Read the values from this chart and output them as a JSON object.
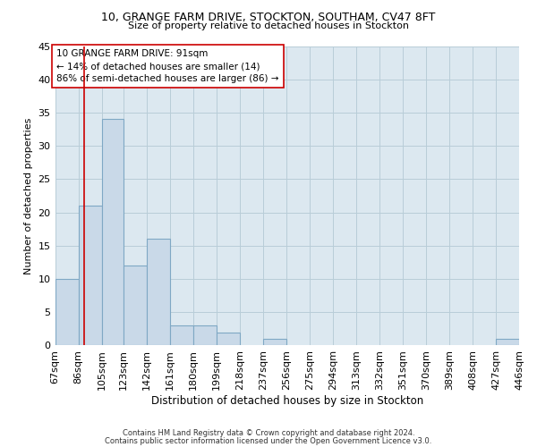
{
  "title1": "10, GRANGE FARM DRIVE, STOCKTON, SOUTHAM, CV47 8FT",
  "title2": "Size of property relative to detached houses in Stockton",
  "xlabel": "Distribution of detached houses by size in Stockton",
  "ylabel": "Number of detached properties",
  "footnote1": "Contains HM Land Registry data © Crown copyright and database right 2024.",
  "footnote2": "Contains public sector information licensed under the Open Government Licence v3.0.",
  "annotation_line1": "10 GRANGE FARM DRIVE: 91sqm",
  "annotation_line2": "← 14% of detached houses are smaller (14)",
  "annotation_line3": "86% of semi-detached houses are larger (86) →",
  "property_size": 91,
  "bar_left_edges": [
    67,
    86,
    105,
    123,
    142,
    161,
    180,
    199,
    218,
    237,
    256,
    275,
    294,
    313,
    332,
    351,
    370,
    389,
    408,
    427
  ],
  "bar_widths": [
    19,
    19,
    18,
    19,
    19,
    19,
    19,
    19,
    19,
    19,
    19,
    19,
    19,
    19,
    19,
    19,
    19,
    19,
    19,
    19
  ],
  "bar_heights": [
    10,
    21,
    34,
    12,
    16,
    3,
    3,
    2,
    0,
    1,
    0,
    0,
    0,
    0,
    0,
    0,
    0,
    0,
    0,
    1
  ],
  "tick_labels": [
    "67sqm",
    "86sqm",
    "105sqm",
    "123sqm",
    "142sqm",
    "161sqm",
    "180sqm",
    "199sqm",
    "218sqm",
    "237sqm",
    "256sqm",
    "275sqm",
    "294sqm",
    "313sqm",
    "332sqm",
    "351sqm",
    "370sqm",
    "389sqm",
    "408sqm",
    "427sqm",
    "446sqm"
  ],
  "tick_positions": [
    67,
    86,
    105,
    123,
    142,
    161,
    180,
    199,
    218,
    237,
    256,
    275,
    294,
    313,
    332,
    351,
    370,
    389,
    408,
    427,
    446
  ],
  "bar_fill_color": "#c9d9e8",
  "bar_edge_color": "#7fa8c4",
  "vline_color": "#cc0000",
  "vline_x": 91,
  "ylim": [
    0,
    45
  ],
  "xlim": [
    67,
    446
  ],
  "yticks": [
    0,
    5,
    10,
    15,
    20,
    25,
    30,
    35,
    40,
    45
  ],
  "annotation_box_color": "#cc0000",
  "bg_color": "#ffffff",
  "plot_bg_color": "#dce8f0",
  "grid_color": "#b8cdd8"
}
